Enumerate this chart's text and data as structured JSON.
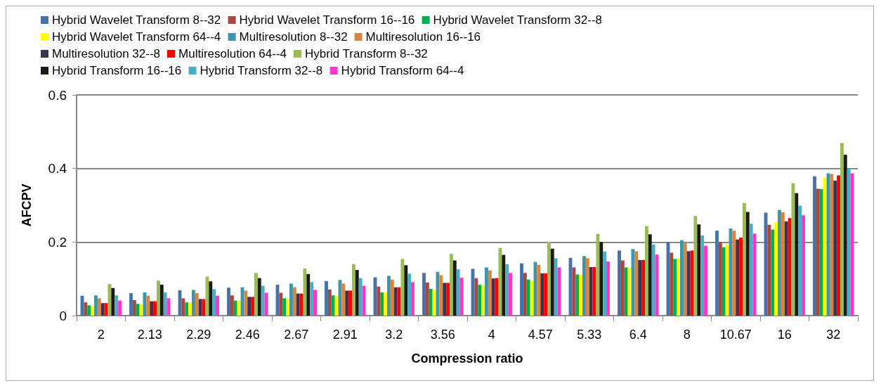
{
  "chart_data": {
    "type": "bar",
    "xlabel": "Compression ratio",
    "ylabel": "AFCPV",
    "categories": [
      "2",
      "2.13",
      "2.29",
      "2.46",
      "2.67",
      "2.91",
      "3.2",
      "3.56",
      "4",
      "4.57",
      "5.33",
      "6.4",
      "8",
      "10.67",
      "16",
      "32"
    ],
    "ylim": [
      0,
      0.6
    ],
    "yticks": [
      0,
      0.2,
      0.4,
      0.6
    ],
    "grid": "y",
    "legend": "top",
    "series": [
      {
        "name": "Hybrid Wavelet Transform 8--32",
        "color": "#4573a7",
        "values": [
          0.054,
          0.061,
          0.069,
          0.076,
          0.084,
          0.094,
          0.104,
          0.116,
          0.127,
          0.142,
          0.157,
          0.177,
          0.2,
          0.231,
          0.28,
          0.379
        ]
      },
      {
        "name": "Hybrid Wavelet Transform 16--16",
        "color": "#aa4643",
        "values": [
          0.036,
          0.042,
          0.047,
          0.055,
          0.062,
          0.071,
          0.079,
          0.09,
          0.102,
          0.116,
          0.131,
          0.15,
          0.171,
          0.2,
          0.247,
          0.345
        ]
      },
      {
        "name": "Hybrid Wavelet Transform 32--8",
        "color": "#00b050",
        "values": [
          0.028,
          0.032,
          0.036,
          0.041,
          0.047,
          0.055,
          0.063,
          0.073,
          0.084,
          0.098,
          0.112,
          0.131,
          0.154,
          0.186,
          0.234,
          0.344
        ]
      },
      {
        "name": "Hybrid Wavelet Transform 64--4",
        "color": "#ffff00",
        "values": [
          0.026,
          0.03,
          0.035,
          0.04,
          0.046,
          0.053,
          0.062,
          0.07,
          0.082,
          0.095,
          0.11,
          0.13,
          0.156,
          0.193,
          0.253,
          0.375
        ]
      },
      {
        "name": "Multiresolution 8--32",
        "color": "#3d96ae",
        "values": [
          0.055,
          0.063,
          0.07,
          0.077,
          0.087,
          0.097,
          0.108,
          0.119,
          0.131,
          0.146,
          0.162,
          0.181,
          0.205,
          0.237,
          0.287,
          0.387
        ]
      },
      {
        "name": "Multiresolution 16--16",
        "color": "#db843d",
        "values": [
          0.047,
          0.054,
          0.061,
          0.068,
          0.077,
          0.087,
          0.098,
          0.11,
          0.123,
          0.138,
          0.156,
          0.175,
          0.199,
          0.231,
          0.281,
          0.385
        ]
      },
      {
        "name": "Multiresolution 32--8",
        "color": "#403152",
        "values": [
          0.034,
          0.039,
          0.045,
          0.051,
          0.06,
          0.068,
          0.077,
          0.089,
          0.101,
          0.115,
          0.132,
          0.151,
          0.175,
          0.207,
          0.256,
          0.367
        ]
      },
      {
        "name": "Multiresolution 64--4",
        "color": "#ff0000",
        "values": [
          0.034,
          0.039,
          0.045,
          0.051,
          0.06,
          0.068,
          0.077,
          0.089,
          0.102,
          0.115,
          0.132,
          0.151,
          0.177,
          0.212,
          0.265,
          0.381
        ]
      },
      {
        "name": "Hybrid Transform 8--32",
        "color": "#9bbb59",
        "values": [
          0.086,
          0.095,
          0.106,
          0.116,
          0.128,
          0.14,
          0.154,
          0.168,
          0.184,
          0.201,
          0.222,
          0.243,
          0.271,
          0.306,
          0.36,
          0.469
        ]
      },
      {
        "name": "Hybrid Transform 16--16",
        "color": "#1d1b10",
        "values": [
          0.075,
          0.084,
          0.093,
          0.102,
          0.113,
          0.124,
          0.137,
          0.15,
          0.165,
          0.182,
          0.2,
          0.221,
          0.248,
          0.282,
          0.333,
          0.437
        ]
      },
      {
        "name": "Hybrid Transform 32--8",
        "color": "#4bacc6",
        "values": [
          0.055,
          0.063,
          0.072,
          0.081,
          0.091,
          0.102,
          0.114,
          0.126,
          0.14,
          0.156,
          0.174,
          0.193,
          0.218,
          0.25,
          0.299,
          0.4
        ]
      },
      {
        "name": "Hybrid Transform 64--4",
        "color": "#ff33cc",
        "values": [
          0.041,
          0.047,
          0.054,
          0.062,
          0.07,
          0.081,
          0.091,
          0.103,
          0.116,
          0.131,
          0.147,
          0.166,
          0.19,
          0.223,
          0.273,
          0.387
        ]
      }
    ]
  }
}
